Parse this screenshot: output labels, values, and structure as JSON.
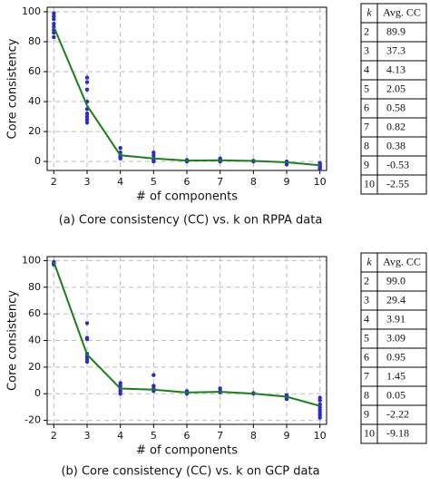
{
  "chart_data": [
    {
      "type": "line",
      "x_label": "# of components",
      "y_label": "Core consistency",
      "caption": "(a) Core consistency (CC) vs. k on RPPA data",
      "x": [
        2,
        3,
        4,
        5,
        6,
        7,
        8,
        9,
        10
      ],
      "series": [
        {
          "color": "#1a7f1a",
          "values": [
            89.9,
            37.3,
            4.13,
            2.05,
            0.58,
            0.82,
            0.38,
            -0.53,
            -2.55
          ],
          "value_labels": [
            "89.9",
            "37.3",
            "4.13",
            "2.05",
            "0.58",
            "0.82",
            "0.38",
            "-0.53",
            "-2.55"
          ]
        }
      ],
      "points": {
        "color": "#2a2ad0",
        "x": [
          2,
          2,
          2,
          2,
          2,
          2,
          2,
          2,
          3,
          3,
          3,
          3,
          3,
          3,
          3,
          3,
          3,
          4,
          4,
          4,
          4,
          4,
          5,
          5,
          5,
          5,
          5,
          6,
          6,
          6,
          7,
          7,
          7,
          8,
          8,
          9,
          9,
          9,
          10,
          10,
          10,
          10,
          10
        ],
        "y": [
          99,
          97,
          95,
          92,
          90,
          88,
          86,
          83,
          56,
          53,
          48,
          40,
          35,
          32,
          30,
          28,
          26,
          9,
          6,
          4,
          3,
          2,
          6,
          4,
          2,
          1,
          0,
          1,
          0.5,
          0,
          2,
          1,
          0,
          0.5,
          0,
          0,
          -1,
          -2,
          -1,
          -2,
          -3,
          -4,
          -5
        ]
      },
      "xlim": [
        1.8,
        10.2
      ],
      "xticks": [
        2,
        3,
        4,
        5,
        6,
        7,
        8,
        9,
        10
      ],
      "ylim": [
        -6,
        103
      ],
      "yticks": [
        0,
        20,
        40,
        60,
        80,
        100
      ],
      "grid": true,
      "table_header": [
        "k",
        "Avg. CC"
      ]
    },
    {
      "type": "line",
      "x_label": "# of components",
      "y_label": "Core consistency",
      "caption": "(b) Core consistency (CC) vs. k on GCP data",
      "x": [
        2,
        3,
        4,
        5,
        6,
        7,
        8,
        9,
        10
      ],
      "series": [
        {
          "color": "#1a7f1a",
          "values": [
            99.0,
            29.4,
            3.91,
            3.09,
            0.95,
            1.45,
            0.05,
            -2.22,
            -9.18
          ],
          "value_labels": [
            "99.0",
            "29.4",
            "3.91",
            "3.09",
            "0.95",
            "1.45",
            "0.05",
            "-2.22",
            "-9.18"
          ]
        }
      ],
      "points": {
        "color": "#2a2ad0",
        "x": [
          2,
          2,
          2,
          3,
          3,
          3,
          3,
          3,
          3,
          3,
          4,
          4,
          4,
          4,
          4,
          5,
          5,
          5,
          5,
          6,
          6,
          6,
          7,
          7,
          7,
          8,
          8,
          9,
          9,
          9,
          9,
          10,
          10,
          10,
          10,
          10,
          10,
          10,
          10
        ],
        "y": [
          99,
          98,
          97,
          53,
          42,
          41,
          30,
          28,
          26,
          24,
          8,
          6,
          4,
          2,
          0,
          14,
          6,
          4,
          2,
          2,
          1,
          0,
          4,
          2,
          1,
          0.5,
          0,
          -1,
          -2,
          -3,
          -4,
          -3,
          -5,
          -8,
          -10,
          -12,
          -14,
          -16,
          -18
        ]
      },
      "xlim": [
        1.8,
        10.2
      ],
      "xticks": [
        2,
        3,
        4,
        5,
        6,
        7,
        8,
        9,
        10
      ],
      "ylim": [
        -23,
        103
      ],
      "yticks": [
        -20,
        0,
        20,
        40,
        60,
        80,
        100
      ],
      "grid": true,
      "table_header": [
        "k",
        "Avg. CC"
      ]
    }
  ]
}
